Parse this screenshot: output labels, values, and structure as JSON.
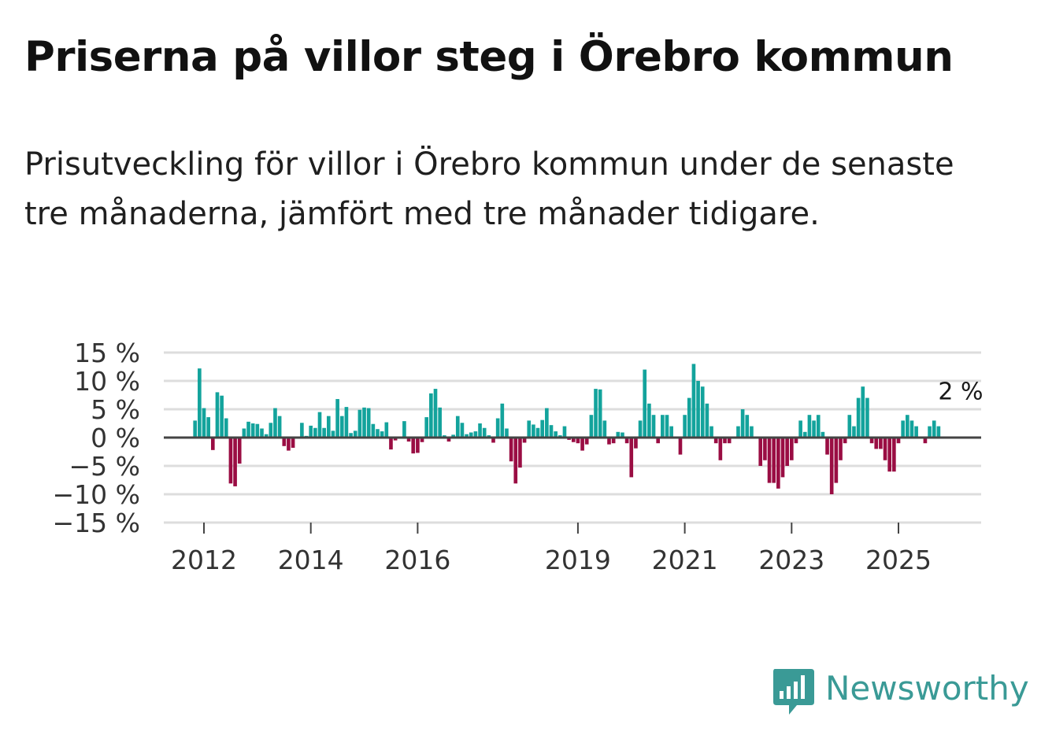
{
  "header": {
    "title": "Priserna på villor steg i Örebro kommun",
    "subtitle": "Prisutveckling för villor i Örebro kommun under de senaste tre månaderna, jämfört med tre månader tidigare."
  },
  "brand": {
    "name": "Newsworthy",
    "color": "#3a9a96",
    "icon": "bar-chart-speech-bubble-icon"
  },
  "colors": {
    "positive": "#13a39c",
    "negative": "#9a0d43",
    "grid": "#dddddd",
    "zero": "#444444"
  },
  "chart_data": {
    "type": "bar",
    "title": "Priserna på villor steg i Örebro kommun",
    "ylabel": "",
    "xlabel": "",
    "ylim": [
      -15,
      15
    ],
    "y_ticks": [
      15,
      10,
      5,
      0,
      -5,
      -10,
      -15
    ],
    "y_tick_labels": [
      "15 %",
      "10 %",
      "5 %",
      "0 %",
      "−5 %",
      "−10 %",
      "−15 %"
    ],
    "x_ticks": [
      2012,
      2014,
      2016,
      2019,
      2021,
      2023,
      2025
    ],
    "x_tick_labels": [
      "2012",
      "2014",
      "2016",
      "2019",
      "2021",
      "2023",
      "2025"
    ],
    "period": "monthly, Nov 2011 – Oct 2025",
    "start": {
      "year": 2011,
      "month": 11
    },
    "values": [
      3,
      12.2,
      5.2,
      3.6,
      -2.2,
      8,
      7.4,
      3.4,
      -8.1,
      -8.6,
      -4.6,
      1.6,
      2.8,
      2.5,
      2.4,
      1.6,
      0.6,
      2.6,
      5.2,
      3.8,
      -1.5,
      -2.3,
      -1.8,
      0.2,
      2.6,
      0.3,
      2.1,
      1.7,
      4.5,
      1.7,
      3.8,
      1.2,
      6.8,
      3.8,
      5.4,
      0.8,
      1.2,
      4.9,
      5.3,
      5.2,
      2.4,
      1.5,
      1.1,
      2.7,
      -2.1,
      -0.5,
      0.2,
      2.9,
      -0.7,
      -2.8,
      -2.7,
      -0.8,
      3.6,
      7.8,
      8.6,
      5.3,
      0.4,
      -0.7,
      0.5,
      3.8,
      2.6,
      0.6,
      0.9,
      1.1,
      2.5,
      1.7,
      0.4,
      -0.9,
      3.4,
      6,
      1.6,
      -4.2,
      -8.1,
      -5.3,
      -0.9,
      3,
      2.3,
      1.7,
      3.1,
      5.2,
      2.2,
      1.1,
      0.4,
      2,
      -0.4,
      -0.8,
      -1,
      -2.3,
      -1.2,
      4,
      8.6,
      8.5,
      3,
      -1.2,
      -1,
      1,
      0.9,
      -1,
      -7,
      -1.9,
      3,
      12,
      6,
      4,
      -1,
      4,
      4,
      2,
      0,
      -3,
      4,
      7,
      13,
      10,
      9,
      6,
      2,
      -1,
      -4,
      -1,
      -1,
      0,
      2,
      5,
      4,
      2,
      0,
      -5,
      -4,
      -8,
      -8,
      -9,
      -7,
      -5,
      -4,
      -1,
      3,
      1,
      4,
      3,
      4,
      1,
      -3,
      -10,
      -8,
      -4,
      -1,
      4,
      2,
      7,
      9,
      7,
      -1,
      -2,
      -2,
      -4,
      -6,
      -6,
      -1,
      3,
      4,
      3,
      2,
      0,
      -1,
      2,
      3,
      2
    ],
    "annotations": [
      {
        "label": "2 %",
        "value": 2,
        "note": "latest value"
      }
    ]
  }
}
